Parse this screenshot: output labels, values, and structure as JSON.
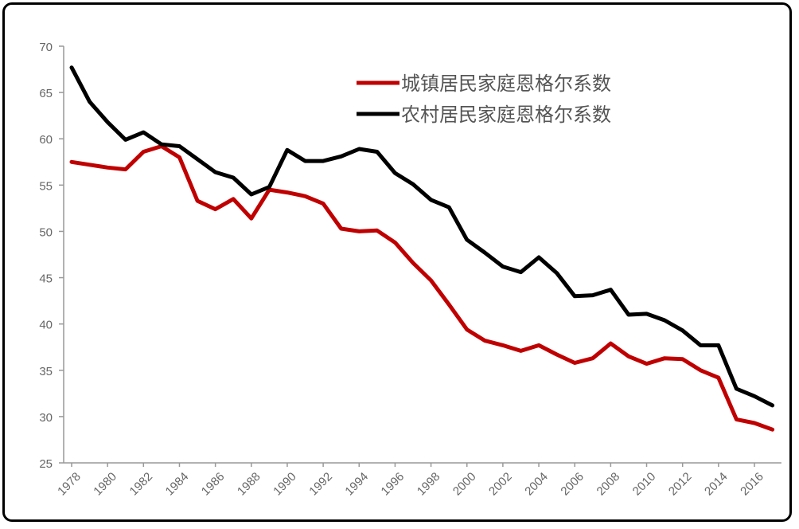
{
  "chart_data": {
    "type": "line",
    "title": "",
    "xlabel": "",
    "ylabel": "",
    "ylim": [
      25,
      70
    ],
    "yticks": [
      25,
      30,
      35,
      40,
      45,
      50,
      55,
      60,
      65,
      70
    ],
    "xticks": [
      "1978",
      "1980",
      "1982",
      "1984",
      "1986",
      "1988",
      "1990",
      "1992",
      "1994",
      "1996",
      "1998",
      "2000",
      "2002",
      "2004",
      "2006",
      "2008",
      "2010",
      "2012",
      "2014",
      "2016"
    ],
    "grid": false,
    "legend_position": "top-center-right",
    "x": [
      1978,
      1979,
      1980,
      1981,
      1982,
      1983,
      1984,
      1985,
      1986,
      1987,
      1988,
      1989,
      1990,
      1991,
      1992,
      1993,
      1994,
      1995,
      1996,
      1997,
      1998,
      1999,
      2000,
      2001,
      2002,
      2003,
      2004,
      2005,
      2006,
      2007,
      2008,
      2009,
      2010,
      2011,
      2012,
      2013,
      2014,
      2015,
      2016,
      2017
    ],
    "series": [
      {
        "name": "城镇居民家庭恩格尔系数",
        "color": "#c00000",
        "values": [
          57.5,
          57.2,
          56.9,
          56.7,
          58.6,
          59.2,
          58.0,
          53.3,
          52.4,
          53.5,
          51.4,
          54.5,
          54.2,
          53.8,
          53.0,
          50.3,
          50.0,
          50.1,
          48.8,
          46.6,
          44.7,
          42.1,
          39.4,
          38.2,
          37.7,
          37.1,
          37.7,
          36.7,
          35.8,
          36.3,
          37.9,
          36.5,
          35.7,
          36.3,
          36.2,
          35.0,
          34.2,
          29.7,
          29.3,
          28.6
        ]
      },
      {
        "name": "农村居民家庭恩格尔系数",
        "color": "#000000",
        "values": [
          67.7,
          64.0,
          61.8,
          59.9,
          60.7,
          59.4,
          59.2,
          57.8,
          56.4,
          55.8,
          54.0,
          54.8,
          58.8,
          57.6,
          57.6,
          58.1,
          58.9,
          58.6,
          56.3,
          55.1,
          53.4,
          52.6,
          49.1,
          47.7,
          46.2,
          45.6,
          47.2,
          45.5,
          43.0,
          43.1,
          43.7,
          41.0,
          41.1,
          40.4,
          39.3,
          37.7,
          37.7,
          33.0,
          32.2,
          31.2
        ]
      }
    ]
  },
  "legend": {
    "items": [
      {
        "label": "城镇居民家庭恩格尔系数",
        "color": "#c00000"
      },
      {
        "label": "农村居民家庭恩格尔系数",
        "color": "#000000"
      }
    ]
  },
  "axis": {
    "y_labels": [
      "70",
      "65",
      "60",
      "55",
      "50",
      "45",
      "40",
      "35",
      "30",
      "25"
    ],
    "x_labels": [
      "1978",
      "1980",
      "1982",
      "1984",
      "1986",
      "1988",
      "1990",
      "1992",
      "1994",
      "1996",
      "1998",
      "2000",
      "2002",
      "2004",
      "2006",
      "2008",
      "2010",
      "2012",
      "2014",
      "2016"
    ]
  }
}
